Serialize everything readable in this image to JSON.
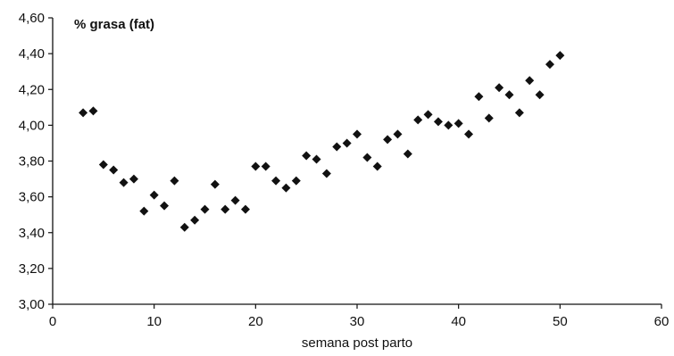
{
  "chart_data": {
    "type": "scatter",
    "title": "",
    "xlabel": "semana post parto",
    "ylabel": "",
    "xlim": [
      0,
      60
    ],
    "ylim": [
      3.0,
      4.6
    ],
    "x_ticks": [
      0,
      10,
      20,
      30,
      40,
      50,
      60
    ],
    "y_ticks": [
      3.0,
      3.2,
      3.4,
      3.6,
      3.8,
      4.0,
      4.2,
      4.4,
      4.6
    ],
    "x_tick_labels": [
      "0",
      "10",
      "20",
      "30",
      "40",
      "50",
      "60"
    ],
    "y_tick_labels": [
      "3,00",
      "3,20",
      "3,40",
      "3,60",
      "3,80",
      "4,00",
      "4,20",
      "4,40",
      "4,60"
    ],
    "grid": false,
    "legend": "none",
    "marker_color": "#111111",
    "series": [
      {
        "name": "% grasa (fat)",
        "points": [
          {
            "x": 3,
            "y": 4.07
          },
          {
            "x": 4,
            "y": 4.08
          },
          {
            "x": 5,
            "y": 3.78
          },
          {
            "x": 6,
            "y": 3.75
          },
          {
            "x": 7,
            "y": 3.68
          },
          {
            "x": 8,
            "y": 3.7
          },
          {
            "x": 9,
            "y": 3.52
          },
          {
            "x": 10,
            "y": 3.61
          },
          {
            "x": 11,
            "y": 3.55
          },
          {
            "x": 12,
            "y": 3.69
          },
          {
            "x": 13,
            "y": 3.43
          },
          {
            "x": 14,
            "y": 3.47
          },
          {
            "x": 15,
            "y": 3.53
          },
          {
            "x": 16,
            "y": 3.67
          },
          {
            "x": 17,
            "y": 3.53
          },
          {
            "x": 18,
            "y": 3.58
          },
          {
            "x": 19,
            "y": 3.53
          },
          {
            "x": 20,
            "y": 3.77
          },
          {
            "x": 21,
            "y": 3.77
          },
          {
            "x": 22,
            "y": 3.69
          },
          {
            "x": 23,
            "y": 3.65
          },
          {
            "x": 24,
            "y": 3.69
          },
          {
            "x": 25,
            "y": 3.83
          },
          {
            "x": 26,
            "y": 3.81
          },
          {
            "x": 27,
            "y": 3.73
          },
          {
            "x": 28,
            "y": 3.88
          },
          {
            "x": 29,
            "y": 3.9
          },
          {
            "x": 30,
            "y": 3.95
          },
          {
            "x": 31,
            "y": 3.82
          },
          {
            "x": 32,
            "y": 3.77
          },
          {
            "x": 33,
            "y": 3.92
          },
          {
            "x": 34,
            "y": 3.95
          },
          {
            "x": 35,
            "y": 3.84
          },
          {
            "x": 36,
            "y": 4.03
          },
          {
            "x": 37,
            "y": 4.06
          },
          {
            "x": 38,
            "y": 4.02
          },
          {
            "x": 39,
            "y": 4.0
          },
          {
            "x": 40,
            "y": 4.01
          },
          {
            "x": 41,
            "y": 3.95
          },
          {
            "x": 42,
            "y": 4.16
          },
          {
            "x": 43,
            "y": 4.04
          },
          {
            "x": 44,
            "y": 4.21
          },
          {
            "x": 45,
            "y": 4.17
          },
          {
            "x": 46,
            "y": 4.07
          },
          {
            "x": 47,
            "y": 4.25
          },
          {
            "x": 48,
            "y": 4.17
          },
          {
            "x": 49,
            "y": 4.34
          },
          {
            "x": 50,
            "y": 4.39
          }
        ]
      }
    ]
  }
}
